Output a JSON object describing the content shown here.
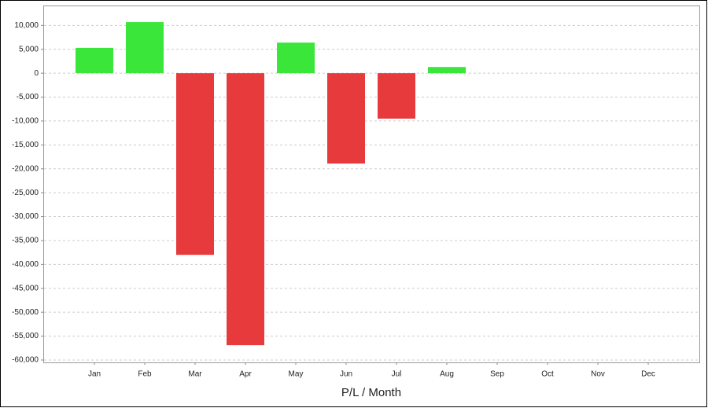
{
  "chart_data": {
    "type": "bar",
    "x_label": "P/L / Month",
    "categories": [
      "Jan",
      "Feb",
      "Mar",
      "Apr",
      "May",
      "Jun",
      "Jul",
      "Aug",
      "Sep",
      "Oct",
      "Nov",
      "Dec"
    ],
    "values": [
      5300,
      10700,
      -38000,
      -56900,
      6400,
      -18900,
      -9500,
      1300,
      null,
      null,
      null,
      null
    ],
    "positive_color": "#3ae63a",
    "negative_color": "#e63a3d",
    "ylim": [
      -60500,
      14000
    ],
    "yticks": [
      {
        "value": 10000,
        "label": "10,000"
      },
      {
        "value": 5000,
        "label": "5,000"
      },
      0,
      {
        "value": -5000,
        "label": "-5,000"
      },
      {
        "value": -10000,
        "label": "-10,000"
      },
      {
        "value": -15000,
        "label": "-15,000"
      },
      {
        "value": -20000,
        "label": "-20,000"
      },
      {
        "value": -25000,
        "label": "-25,000"
      },
      {
        "value": -30000,
        "label": "-30,000"
      },
      {
        "value": -35000,
        "label": "-35,000"
      },
      {
        "value": -40000,
        "label": "-40,000"
      },
      {
        "value": -45000,
        "label": "-45,000"
      },
      {
        "value": -50000,
        "label": "-50,000"
      },
      {
        "value": -55000,
        "label": "-55,000"
      },
      {
        "value": -60000,
        "label": "-60,000"
      }
    ],
    "grid": true
  }
}
